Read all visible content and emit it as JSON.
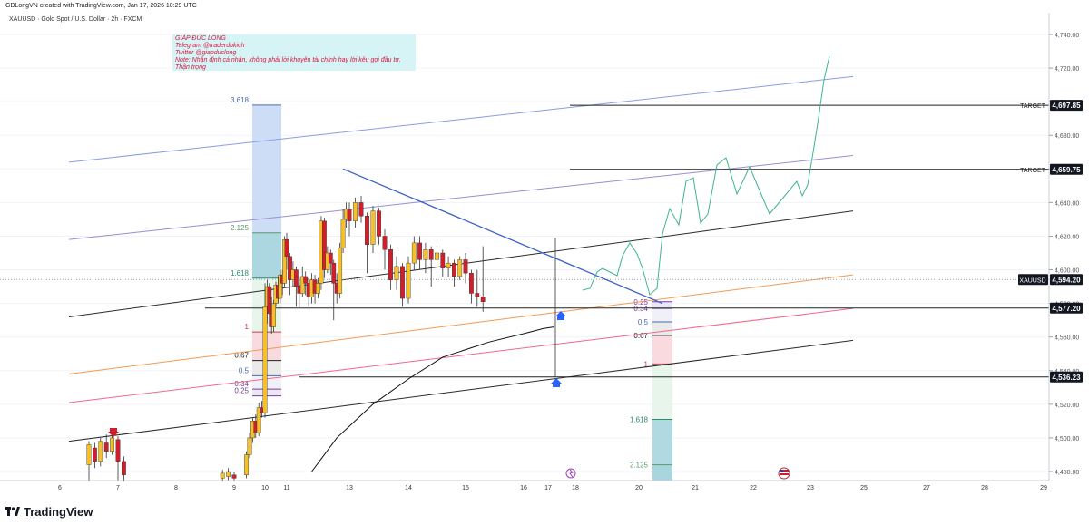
{
  "header": {
    "created_line": "GDLongVN created with TradingView.com, Jan 17, 2026 10:29 UTC",
    "symbol_line": "XAUUSD · Gold Spot / U.S. Dollar · 2h · FXCM"
  },
  "note": {
    "lines": [
      "GIÁP ĐỨC LONG",
      "Telegram @traderdukich",
      "Twitter @giapduclong",
      "Note: Nhận định cá nhân, không phải lời khuyên tài chính hay lời kêu gọi đầu tư.",
      "Thận trọng"
    ]
  },
  "footer": {
    "brand": "TradingView"
  },
  "colors": {
    "bull": "#f6c02a",
    "bear": "#d01e2c",
    "grid": "#f0f3fa",
    "blue_channel": "#8a9ee0",
    "purple_channel": "#9a8ed0",
    "black_channel": "#2a2a2a",
    "orange_channel": "#f39b53",
    "red_channel": "#ef6a8a",
    "trendline": "#3f62c9",
    "projection": "#3fb58f",
    "fib_blue": "#c9d9f5",
    "fib_teal": "#a9d5de",
    "fib_pink": "#f8d6dc",
    "fib_green": "#e4f4e8"
  },
  "chart_data": {
    "type": "candlestick",
    "title": "XAUUSD · Gold Spot / U.S. Dollar · 2h · FXCM",
    "xlabel": "",
    "ylabel": "",
    "x_ticks": [
      "6",
      "7",
      "8",
      "9",
      "10",
      "11",
      "13",
      "14",
      "15",
      "16",
      "17",
      "18",
      "20",
      "21",
      "22",
      "23",
      "25",
      "27",
      "28",
      "29"
    ],
    "y_ticks": [
      "4,480.00",
      "4,500.00",
      "4,520.00",
      "4,540.00",
      "4,560.00",
      "4,580.00",
      "4,600.00",
      "4,620.00",
      "4,640.00",
      "4,660.00",
      "4,680.00",
      "4,700.00",
      "4,720.00",
      "4,740.00"
    ],
    "ylim": [
      4472,
      4752
    ],
    "price_labels": [
      {
        "label": "TARGET",
        "value": 4697.85,
        "text": "4,697.85"
      },
      {
        "label": "TARGET",
        "value": 4659.75,
        "text": "4,659.75"
      },
      {
        "label": "XAUUSD",
        "value": 4594.2,
        "text": "4,594.20"
      },
      {
        "label": "",
        "value": 4577.2,
        "text": "4,577.20"
      },
      {
        "label": "",
        "value": 4536.23,
        "text": "4,536.23"
      }
    ],
    "fib_left": [
      {
        "label": "3.618",
        "value": 4698
      },
      {
        "label": "2.125",
        "value": 4622
      },
      {
        "label": "1.618",
        "value": 4595
      },
      {
        "label": "1",
        "value": 4563
      },
      {
        "label": "0.67",
        "value": 4546
      },
      {
        "label": "0.5",
        "value": 4537
      },
      {
        "label": "0.34",
        "value": 4529
      },
      {
        "label": "0.25",
        "value": 4525
      }
    ],
    "fib_right": [
      {
        "label": "0.25",
        "value": 4581
      },
      {
        "label": "0.34",
        "value": 4577
      },
      {
        "label": "0.5",
        "value": 4569
      },
      {
        "label": "0.67",
        "value": 4561
      },
      {
        "label": "1",
        "value": 4544
      },
      {
        "label": "1.618",
        "value": 4511
      },
      {
        "label": "2.125",
        "value": 4484
      }
    ],
    "candles": [
      [
        6.5,
        4484,
        4496,
        4474,
        4498
      ],
      [
        6.6,
        4494,
        4486,
        4482,
        4497
      ],
      [
        6.7,
        4486,
        4498,
        4483,
        4500
      ],
      [
        6.8,
        4497,
        4492,
        4488,
        4502
      ],
      [
        6.9,
        4492,
        4500,
        4490,
        4503
      ],
      [
        7.0,
        4499,
        4486,
        4474,
        4501
      ],
      [
        7.1,
        4486,
        4478,
        4474,
        4489
      ],
      [
        8.8,
        4476,
        4479,
        4474,
        4481
      ],
      [
        8.9,
        4477,
        4480,
        4475,
        4482
      ],
      [
        9.0,
        4478,
        4476,
        4474,
        4480
      ],
      [
        9.4,
        4478,
        4490,
        4476,
        4492
      ],
      [
        9.5,
        4490,
        4500,
        4488,
        4503
      ],
      [
        9.6,
        4500,
        4510,
        4497,
        4512
      ],
      [
        9.7,
        4510,
        4503,
        4500,
        4514
      ],
      [
        9.8,
        4503,
        4518,
        4501,
        4521
      ],
      [
        9.9,
        4518,
        4515,
        4512,
        4522
      ],
      [
        10.0,
        4515,
        4578,
        4512,
        4592
      ],
      [
        10.1,
        4578,
        4590,
        4568,
        4594
      ],
      [
        10.2,
        4590,
        4574,
        4566,
        4592
      ],
      [
        10.3,
        4574,
        4566,
        4562,
        4584
      ],
      [
        10.4,
        4566,
        4580,
        4563,
        4582
      ],
      [
        10.5,
        4580,
        4591,
        4578,
        4593
      ],
      [
        10.6,
        4591,
        4583,
        4580,
        4596
      ],
      [
        10.7,
        4583,
        4597,
        4580,
        4600
      ],
      [
        10.8,
        4597,
        4592,
        4585,
        4600
      ],
      [
        10.9,
        4592,
        4618,
        4590,
        4620
      ],
      [
        11.0,
        4618,
        4608,
        4600,
        4622
      ],
      [
        11.1,
        4608,
        4594,
        4585,
        4610
      ],
      [
        11.2,
        4594,
        4600,
        4590,
        4605
      ],
      [
        11.3,
        4600,
        4590,
        4578,
        4602
      ],
      [
        11.4,
        4590,
        4586,
        4577,
        4594
      ],
      [
        11.5,
        4586,
        4596,
        4584,
        4602
      ],
      [
        11.6,
        4596,
        4592,
        4585,
        4599
      ],
      [
        11.7,
        4592,
        4584,
        4578,
        4595
      ],
      [
        11.8,
        4584,
        4594,
        4580,
        4598
      ],
      [
        11.9,
        4594,
        4586,
        4580,
        4597
      ],
      [
        12.0,
        4586,
        4592,
        4583,
        4595
      ],
      [
        12.1,
        4592,
        4629,
        4588,
        4632
      ],
      [
        12.2,
        4629,
        4600,
        4595,
        4631
      ],
      [
        12.3,
        4600,
        4610,
        4598,
        4614
      ],
      [
        12.4,
        4610,
        4604,
        4597,
        4612
      ],
      [
        12.5,
        4604,
        4592,
        4570,
        4606
      ],
      [
        12.6,
        4592,
        4586,
        4580,
        4598
      ],
      [
        12.7,
        4586,
        4613,
        4583,
        4616
      ],
      [
        12.8,
        4613,
        4630,
        4610,
        4636
      ],
      [
        12.9,
        4630,
        4636,
        4625,
        4640
      ],
      [
        13.0,
        4636,
        4629,
        4620,
        4640
      ],
      [
        13.1,
        4629,
        4640,
        4625,
        4643
      ],
      [
        13.2,
        4640,
        4632,
        4628,
        4644
      ],
      [
        13.3,
        4632,
        4615,
        4598,
        4634
      ],
      [
        13.4,
        4615,
        4635,
        4610,
        4638
      ],
      [
        13.5,
        4635,
        4620,
        4615,
        4637
      ],
      [
        13.6,
        4620,
        4612,
        4600,
        4624
      ],
      [
        13.7,
        4612,
        4594,
        4588,
        4615
      ],
      [
        13.8,
        4594,
        4602,
        4588,
        4608
      ],
      [
        13.9,
        4602,
        4583,
        4578,
        4604
      ],
      [
        14.0,
        4583,
        4604,
        4580,
        4608
      ],
      [
        14.1,
        4604,
        4616,
        4600,
        4620
      ],
      [
        14.2,
        4616,
        4606,
        4600,
        4620
      ],
      [
        14.3,
        4606,
        4612,
        4598,
        4616
      ],
      [
        14.4,
        4612,
        4606,
        4590,
        4614
      ],
      [
        14.5,
        4606,
        4610,
        4600,
        4614
      ],
      [
        14.6,
        4610,
        4601,
        4596,
        4612
      ],
      [
        14.7,
        4601,
        4604,
        4596,
        4608
      ],
      [
        14.8,
        4604,
        4596,
        4590,
        4606
      ],
      [
        14.9,
        4596,
        4606,
        4594,
        4608
      ],
      [
        15.0,
        4606,
        4598,
        4592,
        4610
      ],
      [
        15.1,
        4598,
        4586,
        4580,
        4600
      ],
      [
        15.2,
        4586,
        4584,
        4578,
        4600
      ],
      [
        15.3,
        4584,
        4581,
        4575,
        4614
      ]
    ]
  }
}
